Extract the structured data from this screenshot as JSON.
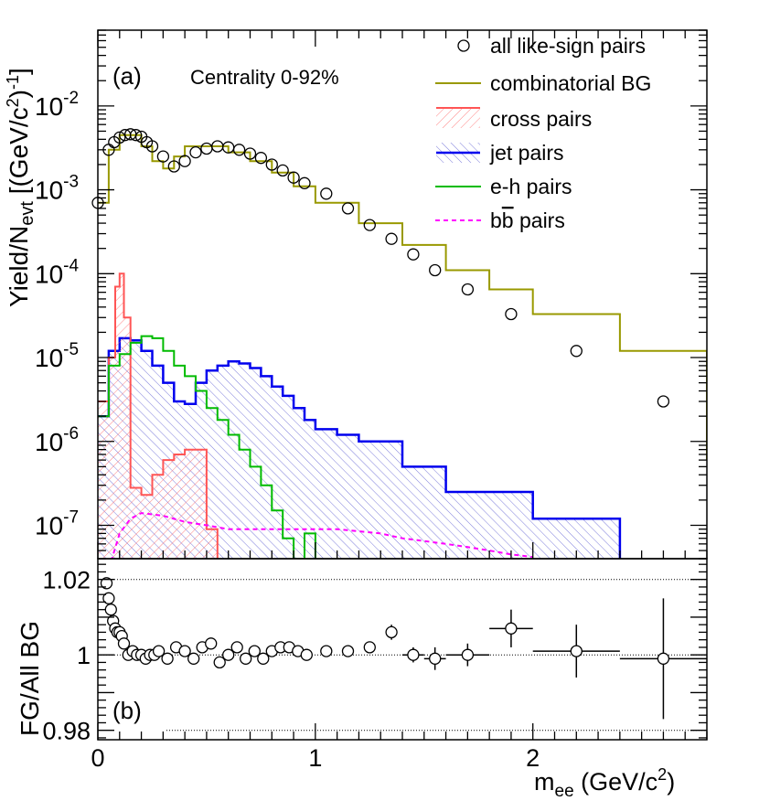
{
  "chart_data": [
    {
      "type": "line",
      "panel": "a",
      "panel_label": "(a)",
      "annotation": "Centrality 0-92%",
      "ylabel_main": "Yield/N",
      "ylabel_sub": "evt",
      "ylabel_unit_open": " [(GeV/c",
      "ylabel_unit_close": ")",
      "ylabel_exp2": "2",
      "ylabel_expm1": "-1",
      "y_scale": "log",
      "ylim": [
        4e-08,
        0.08
      ],
      "xlim": [
        0,
        2.8
      ],
      "y_ticks": [
        {
          "value": 1e-07,
          "base": "10",
          "exp": "-7"
        },
        {
          "value": 1e-06,
          "base": "10",
          "exp": "-6"
        },
        {
          "value": 1e-05,
          "base": "10",
          "exp": "-5"
        },
        {
          "value": 0.0001,
          "base": "10",
          "exp": "-4"
        },
        {
          "value": 0.001,
          "base": "10",
          "exp": "-3"
        },
        {
          "value": 0.01,
          "base": "10",
          "exp": "-2"
        }
      ],
      "legend": [
        {
          "key": "all",
          "label": "all like-sign pairs"
        },
        {
          "key": "comb",
          "label": "combinatorial BG"
        },
        {
          "key": "cross",
          "label": "cross pairs"
        },
        {
          "key": "jet",
          "label": "jet pairs"
        },
        {
          "key": "eh",
          "label": "e-h pairs"
        },
        {
          "key": "bb",
          "label": " pairs",
          "prefix": "b",
          "overline": "b"
        }
      ],
      "series": [
        {
          "name": "combinatorial BG",
          "key": "comb",
          "color": "#999900",
          "bins": [
            0,
            0.05,
            0.1,
            0.15,
            0.2,
            0.25,
            0.3,
            0.35,
            0.4,
            0.5,
            0.6,
            0.7,
            0.8,
            0.9,
            1.0,
            1.2,
            1.4,
            1.6,
            1.8,
            2.0,
            2.4,
            2.8
          ],
          "values": [
            0.0007,
            0.003,
            0.0045,
            0.0045,
            0.0033,
            0.0022,
            0.0018,
            0.0025,
            0.0033,
            0.0033,
            0.0028,
            0.0022,
            0.0016,
            0.0011,
            0.0007,
            0.0004,
            0.00022,
            0.00011,
            6.5e-05,
            3.3e-05,
            1.2e-05,
            3e-06
          ],
          "end_value": 6e-07
        },
        {
          "name": "cross pairs",
          "key": "cross",
          "color": "#ff5555",
          "bins": [
            0,
            0.05,
            0.08,
            0.1,
            0.12,
            0.15,
            0.2,
            0.25,
            0.3,
            0.35,
            0.4,
            0.45,
            0.5,
            0.55
          ],
          "values": [
            3e-06,
            1e-05,
            7e-05,
            0.0001,
            3e-05,
            2.8e-07,
            2.3e-07,
            4e-07,
            6e-07,
            7e-07,
            8e-07,
            8e-07,
            9e-08,
            4e-08
          ]
        },
        {
          "name": "jet pairs",
          "key": "jet",
          "color": "#0000ee",
          "bins": [
            0,
            0.05,
            0.1,
            0.15,
            0.2,
            0.25,
            0.3,
            0.35,
            0.4,
            0.45,
            0.5,
            0.55,
            0.6,
            0.65,
            0.7,
            0.75,
            0.8,
            0.85,
            0.9,
            0.95,
            1.0,
            1.1,
            1.2,
            1.4,
            1.6,
            2.0,
            2.4
          ],
          "values": [
            2e-06,
            1.2e-05,
            1.7e-05,
            1.6e-05,
            1.2e-05,
            8e-06,
            5e-06,
            3e-06,
            2.8e-06,
            5e-06,
            7e-06,
            8e-06,
            9e-06,
            8.5e-06,
            7.5e-06,
            6e-06,
            4.5e-06,
            3.5e-06,
            2.5e-06,
            1.8e-06,
            1.4e-06,
            1.2e-06,
            1e-06,
            5e-07,
            2.5e-07,
            1.2e-07,
            4e-08
          ]
        },
        {
          "name": "e-h pairs",
          "key": "eh",
          "color": "#00bb00",
          "bins": [
            0,
            0.05,
            0.1,
            0.15,
            0.2,
            0.25,
            0.3,
            0.35,
            0.4,
            0.45,
            0.5,
            0.55,
            0.6,
            0.65,
            0.7,
            0.75,
            0.8,
            0.85,
            0.9,
            0.95,
            1.0
          ],
          "values": [
            2e-06,
            8e-06,
            1.1e-05,
            1.5e-05,
            1.8e-05,
            1.7e-05,
            1.2e-05,
            8e-06,
            6e-06,
            4e-06,
            2.5e-06,
            1.8e-06,
            1.2e-06,
            8e-07,
            5e-07,
            3e-07,
            1.5e-07,
            7e-08,
            4e-08,
            8e-08,
            4e-08
          ]
        },
        {
          "name": "b̅b pairs",
          "key": "bb",
          "color": "#ff00ff",
          "x": [
            0.05,
            0.1,
            0.15,
            0.2,
            0.3,
            0.4,
            0.5,
            0.6,
            0.7,
            0.8,
            0.9,
            1.0,
            1.1,
            1.2,
            1.3,
            1.4,
            1.5,
            1.6,
            1.7,
            1.8,
            1.9,
            2.0
          ],
          "y": [
            3e-08,
            8e-08,
            1.2e-07,
            1.4e-07,
            1.3e-07,
            1.1e-07,
            1e-07,
            9e-08,
            9e-08,
            9e-08,
            9e-08,
            9e-08,
            9e-08,
            8.5e-08,
            8e-08,
            7e-08,
            6.5e-08,
            6e-08,
            5.5e-08,
            5e-08,
            4.5e-08,
            4.2e-08
          ]
        },
        {
          "name": "all like-sign pairs",
          "key": "all",
          "marker": "open-circle",
          "x": [
            0.0,
            0.05,
            0.075,
            0.1,
            0.125,
            0.15,
            0.175,
            0.2,
            0.225,
            0.25,
            0.3,
            0.35,
            0.4,
            0.45,
            0.5,
            0.55,
            0.6,
            0.65,
            0.7,
            0.75,
            0.8,
            0.85,
            0.9,
            0.95,
            1.05,
            1.15,
            1.25,
            1.35,
            1.45,
            1.55,
            1.7,
            1.9,
            2.2,
            2.6
          ],
          "y": [
            0.0007,
            0.003,
            0.0037,
            0.0042,
            0.0045,
            0.0046,
            0.0045,
            0.0043,
            0.0037,
            0.0033,
            0.0025,
            0.0019,
            0.0022,
            0.0028,
            0.0031,
            0.0033,
            0.0032,
            0.003,
            0.0027,
            0.0024,
            0.002,
            0.0017,
            0.0014,
            0.0012,
            0.0009,
            0.0006,
            0.00038,
            0.00026,
            0.00017,
            0.00011,
            6.5e-05,
            3.3e-05,
            1.2e-05,
            3e-06
          ]
        }
      ]
    },
    {
      "type": "scatter",
      "panel": "b",
      "panel_label": "(b)",
      "ylabel": "FG/All BG",
      "xlabel": "m",
      "xlabel_sub": "ee",
      "xlabel_unit": " (GeV/c",
      "xlabel_exp": "2",
      "xlabel_close": ")",
      "xlim": [
        0,
        2.8
      ],
      "ylim": [
        0.9775,
        1.0255
      ],
      "x_ticks": [
        {
          "value": 0,
          "label": "0"
        },
        {
          "value": 1,
          "label": "1"
        },
        {
          "value": 2,
          "label": "2"
        }
      ],
      "y_ticks": [
        {
          "value": 0.98,
          "label": "0.98"
        },
        {
          "value": 1.0,
          "label": "1"
        },
        {
          "value": 1.02,
          "label": "1.02"
        }
      ],
      "reference_lines": [
        1.02,
        1.0,
        0.98
      ],
      "points": {
        "x": [
          0.04,
          0.05,
          0.06,
          0.07,
          0.08,
          0.09,
          0.1,
          0.11,
          0.12,
          0.14,
          0.16,
          0.18,
          0.2,
          0.22,
          0.24,
          0.26,
          0.28,
          0.32,
          0.36,
          0.4,
          0.44,
          0.48,
          0.52,
          0.56,
          0.6,
          0.64,
          0.68,
          0.72,
          0.76,
          0.8,
          0.84,
          0.88,
          0.92,
          0.96,
          1.05,
          1.15,
          1.25,
          1.35,
          1.45,
          1.55,
          1.7,
          1.9,
          2.2,
          2.6
        ],
        "y": [
          1.019,
          1.015,
          1.012,
          1.009,
          1.007,
          1.006,
          1.006,
          1.005,
          1.003,
          1.0,
          1.001,
          1.0,
          1.0,
          0.999,
          1.0,
          1.0,
          1.001,
          0.999,
          1.002,
          1.001,
          0.999,
          1.002,
          1.003,
          0.998,
          1.0,
          1.002,
          0.999,
          1.001,
          0.999,
          1.001,
          1.002,
          1.002,
          1.001,
          1.0,
          1.001,
          1.001,
          1.002,
          1.006,
          1.0,
          0.999,
          1.0,
          1.007,
          1.001,
          0.999
        ],
        "xerr": [
          0,
          0,
          0,
          0,
          0,
          0,
          0,
          0,
          0,
          0,
          0,
          0,
          0,
          0,
          0,
          0,
          0,
          0,
          0,
          0,
          0,
          0,
          0,
          0,
          0,
          0,
          0,
          0,
          0,
          0,
          0,
          0,
          0,
          0,
          0,
          0,
          0,
          0,
          0.05,
          0.05,
          0.1,
          0.1,
          0.2,
          0.2
        ],
        "yerr": [
          0,
          0,
          0,
          0,
          0,
          0,
          0,
          0,
          0,
          0,
          0,
          0,
          0,
          0,
          0,
          0,
          0,
          0,
          0,
          0,
          0,
          0,
          0,
          0,
          0,
          0,
          0,
          0,
          0,
          0,
          0,
          0,
          0,
          0,
          0,
          0,
          0,
          0.002,
          0.002,
          0.003,
          0.003,
          0.005,
          0.007,
          0.016
        ]
      }
    }
  ]
}
